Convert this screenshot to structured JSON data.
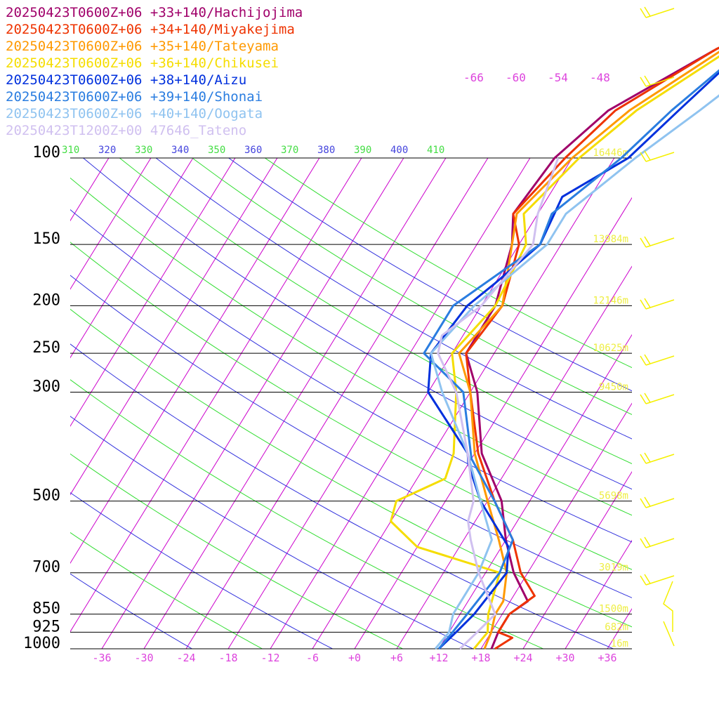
{
  "chart_data": {
    "type": "line",
    "title": "",
    "xlabel": "",
    "ylabel": "",
    "chart_kind_note_free": true,
    "pressure_levels": [
      100,
      150,
      200,
      250,
      300,
      500,
      700,
      850,
      925,
      1000
    ],
    "pressure_axis_log": true,
    "temperature_ticks": [
      "-36",
      "-30",
      "-24",
      "-18",
      "-12",
      "-6",
      "+0",
      "+6",
      "+12",
      "+18",
      "+24",
      "+30",
      "+36"
    ],
    "temperature_range": [
      -40,
      40
    ],
    "theta_labels": [
      "310",
      "320",
      "330",
      "340",
      "350",
      "360",
      "370",
      "380",
      "390",
      "400",
      "410"
    ],
    "mixing_labels": [
      "-66",
      "-60",
      "-54",
      "-48"
    ],
    "height_labels": [
      {
        "p": 100,
        "text": "16446m"
      },
      {
        "p": 150,
        "text": "13984m"
      },
      {
        "p": 200,
        "text": "12146m"
      },
      {
        "p": 250,
        "text": "10625m"
      },
      {
        "p": 300,
        "text": "9450m"
      },
      {
        "p": 500,
        "text": "5698m"
      },
      {
        "p": 700,
        "text": "3019m"
      },
      {
        "p": 850,
        "text": "1500m"
      },
      {
        "p": 925,
        "text": "682m"
      },
      {
        "p": 1000,
        "text": "16m"
      }
    ],
    "series": [
      {
        "name": "20250423T0600Z+06 +33+140/Hachijojima",
        "color": "#a0006a",
        "values": [
          [
            1000,
            19.5
          ],
          [
            925,
            19
          ],
          [
            850,
            19
          ],
          [
            800,
            20.5
          ],
          [
            700,
            16
          ],
          [
            600,
            12
          ],
          [
            500,
            8
          ],
          [
            400,
            1
          ],
          [
            300,
            -5
          ],
          [
            250,
            -10
          ],
          [
            200,
            -10
          ],
          [
            150,
            -13
          ],
          [
            130,
            -15.5
          ],
          [
            100,
            -14.5
          ],
          [
            80,
            -11
          ],
          [
            60,
            -1
          ],
          [
            40,
            18
          ]
        ]
      },
      {
        "name": "20250423T0600Z+06 +34+140/Miyakejima",
        "color": "#ee3300",
        "values": [
          [
            1000,
            20
          ],
          [
            950,
            21.5
          ],
          [
            925,
            19
          ],
          [
            850,
            19
          ],
          [
            780,
            21
          ],
          [
            700,
            17
          ],
          [
            600,
            13
          ],
          [
            500,
            7
          ],
          [
            400,
            0.5
          ],
          [
            300,
            -6
          ],
          [
            250,
            -10
          ],
          [
            200,
            -9
          ],
          [
            150,
            -12
          ],
          [
            130,
            -15.5
          ],
          [
            100,
            -13
          ],
          [
            80,
            -10
          ],
          [
            60,
            -1
          ],
          [
            40,
            18
          ]
        ]
      },
      {
        "name": "20250423T0600Z+06 +35+140/Tateyama",
        "color": "#ff9900",
        "values": [
          [
            1000,
            18.5
          ],
          [
            925,
            18
          ],
          [
            850,
            17
          ],
          [
            800,
            17
          ],
          [
            700,
            15
          ],
          [
            600,
            11
          ],
          [
            500,
            6
          ],
          [
            400,
            0
          ],
          [
            300,
            -6
          ],
          [
            250,
            -11
          ],
          [
            200,
            -9
          ],
          [
            150,
            -13
          ],
          [
            130,
            -15
          ],
          [
            100,
            -12
          ],
          [
            80,
            -8
          ],
          [
            60,
            0
          ],
          [
            40,
            18
          ]
        ]
      },
      {
        "name": "20250423T0600Z+06 +36+140/Chikusei",
        "color": "#f5dd00",
        "values": [
          [
            1000,
            17
          ],
          [
            925,
            17.5
          ],
          [
            850,
            16
          ],
          [
            700,
            14
          ],
          [
            620,
            0
          ],
          [
            550,
            -6
          ],
          [
            500,
            -7
          ],
          [
            450,
            -2
          ],
          [
            400,
            -3
          ],
          [
            300,
            -8
          ],
          [
            250,
            -12
          ],
          [
            200,
            -10
          ],
          [
            150,
            -11
          ],
          [
            130,
            -14
          ],
          [
            100,
            -11
          ],
          [
            80,
            -7
          ],
          [
            60,
            1
          ],
          [
            40,
            19
          ]
        ]
      },
      {
        "name": "20250423T0600Z+06 +38+140/Aizu",
        "color": "#0030dd",
        "values": [
          [
            1000,
            12
          ],
          [
            925,
            13
          ],
          [
            850,
            14
          ],
          [
            700,
            15
          ],
          [
            620,
            13
          ],
          [
            500,
            5
          ],
          [
            420,
            0
          ],
          [
            400,
            -1
          ],
          [
            300,
            -12
          ],
          [
            250,
            -15
          ],
          [
            200,
            -14
          ],
          [
            180,
            -12
          ],
          [
            150,
            -9
          ],
          [
            120,
            -10
          ],
          [
            100,
            -4
          ],
          [
            80,
            -1
          ],
          [
            60,
            3
          ],
          [
            40,
            20
          ]
        ]
      },
      {
        "name": "20250423T0600Z+06 +39+140/Shonai",
        "color": "#2a7de0",
        "values": [
          [
            1000,
            12
          ],
          [
            925,
            12.5
          ],
          [
            850,
            13
          ],
          [
            700,
            14
          ],
          [
            600,
            13
          ],
          [
            500,
            7
          ],
          [
            410,
            0
          ],
          [
            300,
            -7
          ],
          [
            250,
            -16
          ],
          [
            200,
            -16
          ],
          [
            150,
            -9
          ],
          [
            130,
            -10
          ],
          [
            100,
            -5
          ],
          [
            80,
            -2
          ],
          [
            60,
            3
          ],
          [
            40,
            20
          ]
        ]
      },
      {
        "name": "20250423T0600Z+06 +40+140/Oogata",
        "color": "#8fc3f0",
        "values": [
          [
            1000,
            11.5
          ],
          [
            925,
            12
          ],
          [
            850,
            11
          ],
          [
            700,
            11
          ],
          [
            600,
            10
          ],
          [
            500,
            5
          ],
          [
            400,
            -1
          ],
          [
            300,
            -10
          ],
          [
            250,
            -15
          ],
          [
            200,
            -13
          ],
          [
            150,
            -8
          ],
          [
            130,
            -8
          ],
          [
            100,
            -3
          ],
          [
            80,
            2
          ],
          [
            60,
            8
          ],
          [
            40,
            24
          ]
        ]
      },
      {
        "name": "20250423T1200Z+00 47646_Tateno",
        "color": "#d0c0f0",
        "values": [
          [
            1000,
            15
          ],
          [
            925,
            16
          ],
          [
            850,
            17
          ],
          [
            700,
            11
          ],
          [
            600,
            7
          ],
          [
            550,
            5
          ],
          [
            500,
            4
          ],
          [
            400,
            -1
          ],
          [
            300,
            -8
          ],
          [
            250,
            -14
          ],
          [
            230,
            -15
          ],
          [
            200,
            -12
          ],
          [
            150,
            -10
          ],
          [
            130,
            -12
          ],
          [
            100,
            -14
          ]
        ]
      }
    ],
    "wind_barb_color": "#f5f000"
  }
}
